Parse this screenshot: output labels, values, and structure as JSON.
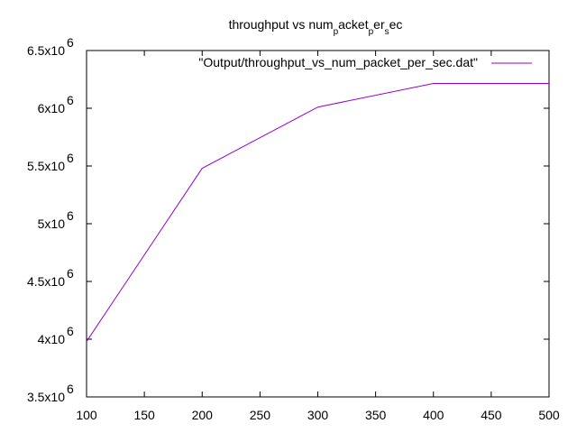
{
  "chart_data": {
    "type": "line",
    "title_parts": [
      "throughput vs num",
      "p",
      "acket",
      "p",
      "er",
      "s",
      "ec"
    ],
    "xlabel": "",
    "ylabel": "",
    "xlim": [
      100,
      500
    ],
    "ylim": [
      3500000,
      6500000
    ],
    "x_ticks": [
      "100",
      "150",
      "200",
      "250",
      "300",
      "350",
      "400",
      "450",
      "500"
    ],
    "y_ticks": [
      {
        "value": 3500000,
        "mantissa": "3.5x10",
        "exp": "6"
      },
      {
        "value": 4000000,
        "mantissa": "4x10",
        "exp": "6"
      },
      {
        "value": 4500000,
        "mantissa": "4.5x10",
        "exp": "6"
      },
      {
        "value": 5000000,
        "mantissa": "5x10",
        "exp": "6"
      },
      {
        "value": 5500000,
        "mantissa": "5.5x10",
        "exp": "6"
      },
      {
        "value": 6000000,
        "mantissa": "6x10",
        "exp": "6"
      },
      {
        "value": 6500000,
        "mantissa": "6.5x10",
        "exp": "6"
      }
    ],
    "grid": false,
    "legend_position": "top-right",
    "series": [
      {
        "name": "\"Output/throughput_vs_num_packet_per_sec.dat\"",
        "color": "#9400d3",
        "x": [
          100,
          200,
          300,
          400,
          500
        ],
        "y": [
          3980000,
          5480000,
          6010000,
          6215000,
          6215000
        ]
      }
    ]
  }
}
